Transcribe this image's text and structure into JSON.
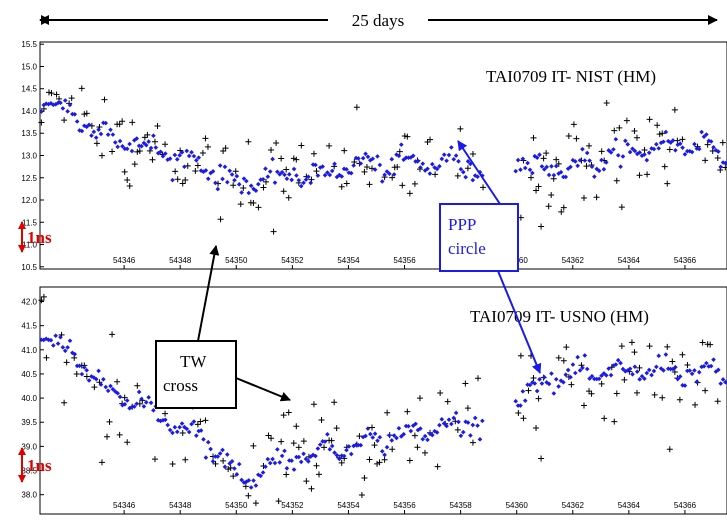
{
  "span_label": "25 days",
  "colors": {
    "tw": "#000000",
    "ppp": "#1a1aee",
    "scale": "#e00000",
    "ppp_box": "#1a1aee"
  },
  "annotations": {
    "ppp_line1": "PPP",
    "ppp_line2": "circle",
    "tw_line1": "TW",
    "tw_line2": "cross",
    "scale_label": "1ns"
  },
  "chart_data": [
    {
      "type": "scatter",
      "title": "TAI0709 IT- NIST (HM)",
      "xlabel": "",
      "ylabel": "",
      "xlim": [
        54343.0,
        54367.5
      ],
      "ylim": [
        10.45,
        15.55
      ],
      "grid": false,
      "x_ticks": [
        54346,
        54348,
        54350,
        54352,
        54354,
        54356,
        54358,
        54360,
        54362,
        54364,
        54366
      ],
      "y_ticks": [
        "10.5",
        "11.0",
        "11.5",
        "12.0",
        "12.5",
        "13.0",
        "13.5",
        "14.0",
        "14.5",
        "15.0",
        "15.5"
      ],
      "gap": [
        54358.8,
        54359.9
      ],
      "series": [
        {
          "marker": "cross",
          "name": "TW",
          "anchors": [
            [
              54343.0,
              14.3
            ],
            [
              54344.5,
              13.9
            ],
            [
              54346.0,
              13.3
            ],
            [
              54347.5,
              12.9
            ],
            [
              54349.0,
              12.6
            ],
            [
              54350.0,
              12.3
            ],
            [
              54351.5,
              12.5
            ],
            [
              54353.0,
              12.6
            ],
            [
              54354.5,
              12.8
            ],
            [
              54356.0,
              12.8
            ],
            [
              54357.5,
              12.9
            ],
            [
              54358.8,
              12.9
            ],
            [
              54359.9,
              12.8
            ],
            [
              54361.5,
              12.6
            ],
            [
              54363.0,
              12.9
            ],
            [
              54365.0,
              13.3
            ],
            [
              54366.5,
              13.4
            ],
            [
              54367.5,
              13.2
            ]
          ],
          "noise": 0.75
        },
        {
          "marker": "diamond",
          "name": "PPP",
          "anchors": [
            [
              54343.0,
              14.3
            ],
            [
              54344.5,
              13.8
            ],
            [
              54346.0,
              13.3
            ],
            [
              54347.5,
              13.05
            ],
            [
              54349.0,
              12.75
            ],
            [
              54350.0,
              12.35
            ],
            [
              54351.5,
              12.5
            ],
            [
              54353.0,
              12.6
            ],
            [
              54354.5,
              12.8
            ],
            [
              54356.0,
              12.8
            ],
            [
              54357.5,
              12.85
            ],
            [
              54358.8,
              12.7
            ],
            [
              54359.9,
              12.9
            ],
            [
              54361.5,
              12.7
            ],
            [
              54363.0,
              12.9
            ],
            [
              54365.0,
              13.2
            ],
            [
              54366.5,
              13.3
            ],
            [
              54367.5,
              13.0
            ]
          ],
          "noise": 0.12
        }
      ]
    },
    {
      "type": "scatter",
      "title": "TAI0709 IT- USNO (HM)",
      "xlabel": "",
      "ylabel": "",
      "xlim": [
        54343.0,
        54367.5
      ],
      "ylim": [
        37.6,
        42.3
      ],
      "grid": false,
      "x_ticks": [
        54346,
        54348,
        54350,
        54352,
        54354,
        54356,
        54358,
        54360,
        54362,
        54364,
        54366
      ],
      "y_ticks": [
        "38.0",
        "38.5",
        "39.0",
        "39.5",
        "40.0",
        "40.5",
        "41.0",
        "41.5",
        "42.0"
      ],
      "gap": [
        54358.8,
        54359.9
      ],
      "series": [
        {
          "marker": "cross",
          "name": "TW",
          "anchors": [
            [
              54343.0,
              41.3
            ],
            [
              54344.5,
              40.8
            ],
            [
              54346.0,
              40.0
            ],
            [
              54347.5,
              39.6
            ],
            [
              54349.0,
              39.1
            ],
            [
              54350.2,
              38.3
            ],
            [
              54351.5,
              38.7
            ],
            [
              54353.0,
              38.9
            ],
            [
              54354.5,
              39.1
            ],
            [
              54356.0,
              39.2
            ],
            [
              54357.5,
              39.4
            ],
            [
              54358.8,
              39.6
            ],
            [
              54359.9,
              40.0
            ],
            [
              54361.5,
              40.4
            ],
            [
              54363.0,
              40.3
            ],
            [
              54365.0,
              40.3
            ],
            [
              54366.5,
              40.4
            ],
            [
              54367.5,
              40.2
            ]
          ],
          "noise": 0.75
        },
        {
          "marker": "diamond",
          "name": "PPP",
          "anchors": [
            [
              54343.0,
              41.3
            ],
            [
              54344.5,
              40.7
            ],
            [
              54346.0,
              40.0
            ],
            [
              54347.5,
              39.6
            ],
            [
              54349.0,
              39.1
            ],
            [
              54350.2,
              38.3
            ],
            [
              54351.5,
              38.7
            ],
            [
              54353.0,
              38.9
            ],
            [
              54354.5,
              39.1
            ],
            [
              54356.0,
              39.25
            ],
            [
              54357.5,
              39.4
            ],
            [
              54358.8,
              39.6
            ],
            [
              54359.9,
              40.0
            ],
            [
              54361.5,
              40.45
            ],
            [
              54363.0,
              40.5
            ],
            [
              54365.0,
              40.6
            ],
            [
              54366.5,
              40.55
            ],
            [
              54367.5,
              40.4
            ]
          ],
          "noise": 0.1
        }
      ]
    }
  ]
}
